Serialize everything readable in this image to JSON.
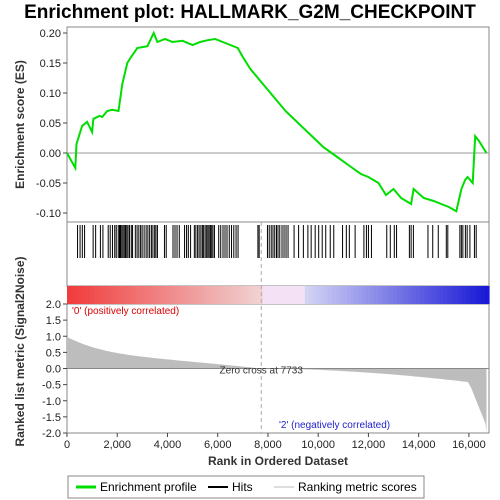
{
  "chart_data": {
    "type": "line",
    "title": "Enrichment plot: HALLMARK_G2M_CHECKPOINT",
    "xlabel": "Rank in Ordered Dataset",
    "ylabel_top": "Enrichment score (ES)",
    "ylabel_bottom": "Ranked list metric (Signal2Noise)",
    "xlim": [
      0,
      16800
    ],
    "ylim_top": [
      -0.115,
      0.21
    ],
    "ylim_bottom": [
      -2.0,
      2.0
    ],
    "x_ticks": [
      0,
      2000,
      4000,
      6000,
      8000,
      10000,
      12000,
      14000,
      16000
    ],
    "x_tick_labels": [
      "0",
      "2,000",
      "4,000",
      "6,000",
      "8,000",
      "10,000",
      "12,000",
      "14,000",
      "16,000"
    ],
    "y_ticks_top": [
      -0.1,
      -0.05,
      0.0,
      0.05,
      0.1,
      0.15,
      0.2
    ],
    "y_tick_labels_top": [
      "-0.10",
      "-0.05",
      "0.00",
      "0.05",
      "0.10",
      "0.15",
      "0.20"
    ],
    "y_ticks_bottom": [
      2.0,
      1.5,
      1.0,
      0.5,
      0.0,
      -0.5,
      -1.0,
      -1.5,
      -2.0
    ],
    "y_tick_labels_bottom": [
      "2.0",
      "1.5",
      "1.0",
      "0.5",
      "0.0",
      "-0.5",
      "-1.0",
      "-1.5",
      "-2.0"
    ],
    "series": [
      {
        "name": "Enrichment profile",
        "color": "#00dd00",
        "x": [
          0,
          330,
          380,
          600,
          800,
          1000,
          1050,
          1300,
          1400,
          1600,
          1800,
          2050,
          2200,
          2400,
          2550,
          2800,
          3200,
          3450,
          3600,
          3900,
          4200,
          4600,
          5000,
          5300,
          5600,
          5900,
          6200,
          6500,
          6800,
          7000,
          7300,
          7700,
          8200,
          8700,
          9200,
          9700,
          10200,
          10700,
          11200,
          11700,
          12000,
          12400,
          12700,
          13000,
          13300,
          13500,
          13700,
          13800,
          14200,
          14600,
          14900,
          15200,
          15500,
          15700,
          15850,
          15950,
          16050,
          16150,
          16250,
          16400,
          16550,
          16700
        ],
        "y": [
          0.0,
          -0.025,
          0.015,
          0.045,
          0.052,
          0.035,
          0.057,
          0.062,
          0.06,
          0.07,
          0.072,
          0.07,
          0.115,
          0.15,
          0.16,
          0.175,
          0.178,
          0.2,
          0.185,
          0.19,
          0.185,
          0.187,
          0.18,
          0.185,
          0.188,
          0.19,
          0.185,
          0.18,
          0.175,
          0.16,
          0.14,
          0.12,
          0.095,
          0.07,
          0.05,
          0.03,
          0.01,
          -0.005,
          -0.02,
          -0.035,
          -0.04,
          -0.05,
          -0.07,
          -0.06,
          -0.075,
          -0.08,
          -0.085,
          -0.06,
          -0.075,
          -0.08,
          -0.085,
          -0.09,
          -0.097,
          -0.06,
          -0.045,
          -0.04,
          -0.045,
          -0.05,
          0.028,
          0.02,
          0.01,
          0.0
        ]
      }
    ],
    "hits_rank": [
      420,
      520,
      610,
      700,
      1040,
      1140,
      1330,
      1430,
      1640,
      1720,
      1810,
      1900,
      1960,
      2040,
      2090,
      2130,
      2180,
      2230,
      2280,
      2330,
      2380,
      2430,
      2490,
      2560,
      2610,
      2720,
      2790,
      2860,
      2930,
      2990,
      3070,
      3150,
      3220,
      3290,
      3360,
      3420,
      3490,
      3540,
      3600,
      3880,
      3950,
      4220,
      4300,
      4380,
      4470,
      4680,
      4760,
      4830,
      4920,
      5070,
      5130,
      5200,
      5260,
      5330,
      5390,
      5440,
      5500,
      5560,
      5610,
      5660,
      5710,
      5760,
      5810,
      5870,
      6040,
      6120,
      6210,
      6290,
      6370,
      6460,
      6550,
      6640,
      6730,
      6810,
      7600,
      7650,
      7980,
      8050,
      8130,
      8200,
      8270,
      8340,
      8400,
      8470,
      8560,
      8640,
      8720,
      8800,
      9040,
      9220,
      9410,
      9590,
      9720,
      9880,
      10020,
      10160,
      10300,
      10480,
      10620,
      10970,
      11120,
      11240,
      11470,
      11820,
      11920,
      12000,
      12120,
      12730,
      12870,
      13030,
      13120,
      13630,
      13700,
      13790,
      14370,
      14560,
      14780,
      15100,
      15160,
      15640,
      15700,
      15760,
      15860,
      15930,
      16040,
      16220,
      16290
    ],
    "bottom_labels": {
      "positive": "'0' (positively correlated)",
      "negative": "'2' (negatively correlated)",
      "zero_cross": "Zero cross at 7733"
    },
    "zero_cross_rank": 7733,
    "legend": {
      "placement": "bottom",
      "items": [
        {
          "label": "Enrichment profile",
          "color": "#00dd00"
        },
        {
          "label": "Hits",
          "color": "#000000"
        },
        {
          "label": "Ranking metric scores",
          "color": "#bdbdbd"
        }
      ]
    },
    "grid": false
  }
}
